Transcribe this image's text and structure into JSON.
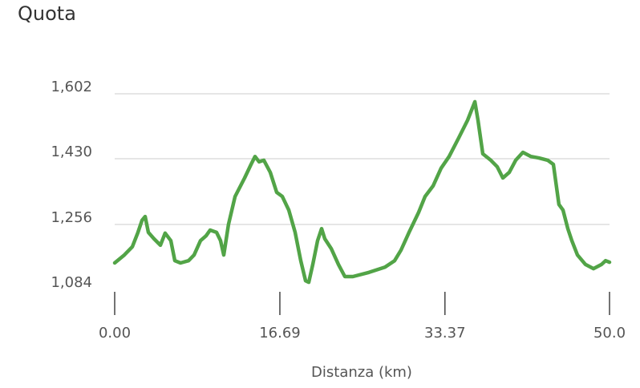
{
  "chart_data": {
    "type": "line",
    "title": "Quota",
    "x_label": "Distanza (km)",
    "x": [
      0,
      0.97,
      1.78,
      2.35,
      2.76,
      3.08,
      3.4,
      3.97,
      4.62,
      5.1,
      5.67,
      6.08,
      6.65,
      7.46,
      8.02,
      8.67,
      9.24,
      9.64,
      10.29,
      10.7,
      11.02,
      11.5,
      12.16,
      13.13,
      13.78,
      14.18,
      14.59,
      15.07,
      15.72,
      16.37,
      16.94,
      17.59,
      18.23,
      18.8,
      19.29,
      19.61,
      20.02,
      20.5,
      20.91,
      21.23,
      21.88,
      22.61,
      23.26,
      24.07,
      25.69,
      27.31,
      28.28,
      28.93,
      29.74,
      30.71,
      31.36,
      32.17,
      32.98,
      33.79,
      34.76,
      35.66,
      36.39,
      36.71,
      37.2,
      38.01,
      38.65,
      39.22,
      39.87,
      40.52,
      41.25,
      42.06,
      42.87,
      43.76,
      44.33,
      44.89,
      45.3,
      45.79,
      46.19,
      46.76,
      47.57,
      48.38,
      49.19,
      49.6,
      50
    ],
    "series": [
      {
        "color": "#52a447",
        "values": [
          1154,
          1175,
          1197,
          1235,
          1267,
          1277,
          1235,
          1218,
          1201,
          1233,
          1213,
          1160,
          1154,
          1160,
          1175,
          1213,
          1226,
          1241,
          1235,
          1213,
          1175,
          1256,
          1330,
          1379,
          1415,
          1436,
          1422,
          1426,
          1394,
          1341,
          1330,
          1294,
          1235,
          1160,
          1107,
          1103,
          1150,
          1213,
          1245,
          1218,
          1192,
          1150,
          1118,
          1118,
          1129,
          1143,
          1160,
          1188,
          1235,
          1288,
          1330,
          1358,
          1405,
          1436,
          1485,
          1532,
          1581,
          1532,
          1443,
          1426,
          1409,
          1379,
          1394,
          1426,
          1447,
          1436,
          1432,
          1426,
          1415,
          1309,
          1294,
          1245,
          1213,
          1175,
          1150,
          1139,
          1150,
          1160,
          1156
        ]
      }
    ],
    "xlim": [
      0,
      50
    ],
    "xticks": [
      {
        "value": 0,
        "label": "0.00"
      },
      16.69,
      33.37,
      {
        "value": 50,
        "label": "50.0"
      }
    ],
    "ylim": [
      1084,
      1602
    ],
    "yticks": [
      {
        "value": 1084,
        "label": "1,084"
      },
      {
        "value": 1256,
        "label": "1,256"
      },
      {
        "value": 1430,
        "label": "1,430"
      },
      {
        "value": 1602,
        "label": "1,602"
      }
    ],
    "grid": true
  }
}
